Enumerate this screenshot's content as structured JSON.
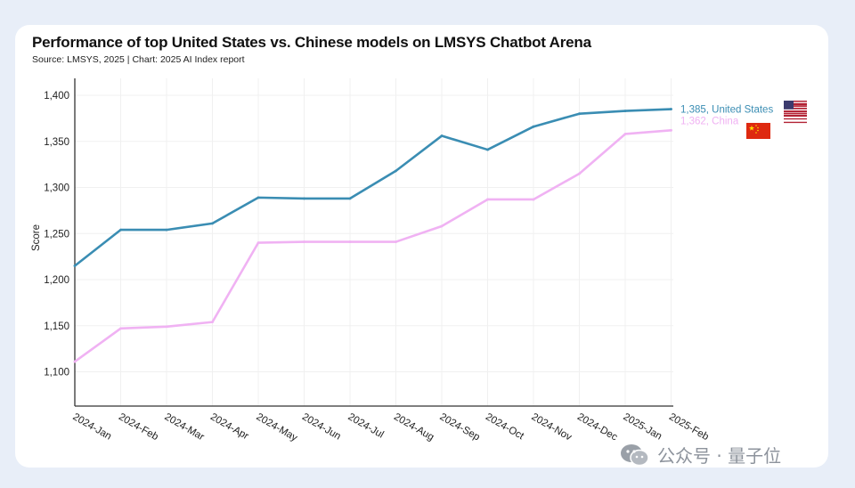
{
  "header": {
    "title": "Performance of top United States vs. Chinese models on LMSYS Chatbot Arena",
    "subtitle": "Source: LMSYS, 2025 | Chart: 2025 AI Index report"
  },
  "watermark": {
    "text": "公众号 · 量子位",
    "icon": "wechat-icon"
  },
  "colors": {
    "us": "#3a8db3",
    "china": "#f0b2f3",
    "axis": "#333333",
    "grid": "#f0f0f0"
  },
  "chart_data": {
    "type": "line",
    "title": "Performance of top United States vs. Chinese models on LMSYS Chatbot Arena",
    "subtitle": "Source: LMSYS, 2025 | Chart: 2025 AI Index report",
    "xlabel": "",
    "ylabel": "Score",
    "ylim": [
      1075,
      1410
    ],
    "yticks": [
      1100,
      1150,
      1200,
      1250,
      1300,
      1350,
      1400
    ],
    "ytick_labels": [
      "1,100",
      "1,150",
      "1,200",
      "1,250",
      "1,300",
      "1,350",
      "1,400"
    ],
    "categories": [
      "2024-Jan",
      "2024-Feb",
      "2024-Mar",
      "2024-Apr",
      "2024-May",
      "2024-Jun",
      "2024-Jul",
      "2024-Aug",
      "2024-Sep",
      "2024-Oct",
      "2024-Nov",
      "2024-Dec",
      "2025-Jan",
      "2025-Feb"
    ],
    "series": [
      {
        "name": "United States",
        "end_label": "1,385, United States",
        "flag": "us-flag-icon",
        "color": "#3a8db3",
        "values": [
          1215,
          1254,
          1254,
          1261,
          1289,
          1288,
          1288,
          1318,
          1356,
          1341,
          1366,
          1380,
          1383,
          1385
        ]
      },
      {
        "name": "China",
        "end_label": "1,362, China",
        "flag": "china-flag-icon",
        "color": "#f0b2f3",
        "values": [
          1111,
          1147,
          1149,
          1154,
          1240,
          1241,
          1241,
          1241,
          1258,
          1287,
          1287,
          1315,
          1358,
          1362
        ]
      }
    ],
    "grid": true,
    "legend": "end-of-line labels"
  }
}
